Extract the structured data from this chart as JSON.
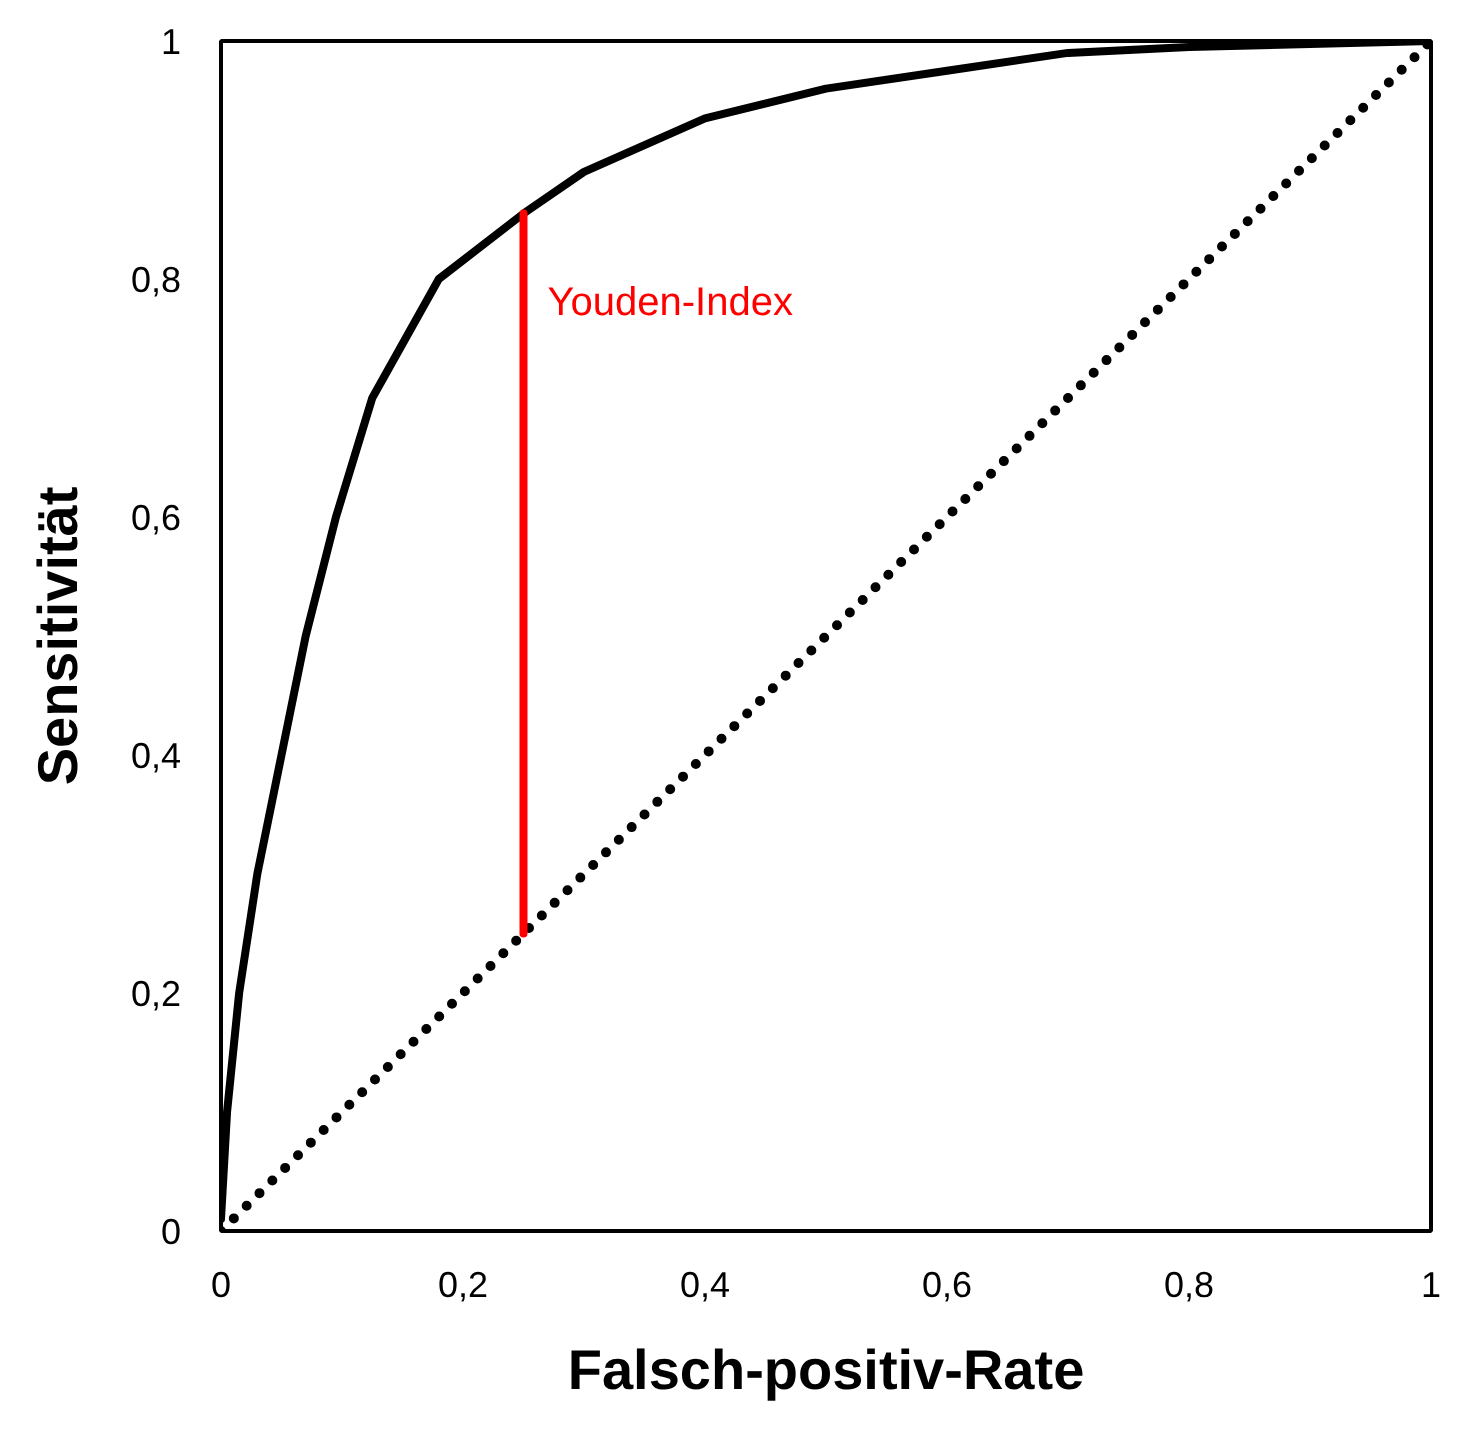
{
  "chart_data": {
    "type": "line",
    "xlabel": "Falsch-positiv-Rate",
    "ylabel": "Sensitivität",
    "xlim": [
      0,
      1
    ],
    "ylim": [
      0,
      1
    ],
    "xticks": [
      0,
      {
        "value": 0.2,
        "label": "0,2"
      },
      {
        "value": 0.4,
        "label": "0,4"
      },
      {
        "value": 0.6,
        "label": "0,6"
      },
      {
        "value": 0.8,
        "label": "0,8"
      },
      1
    ],
    "yticks": [
      0,
      {
        "value": 0.2,
        "label": "0,2"
      },
      {
        "value": 0.4,
        "label": "0,4"
      },
      {
        "value": 0.6,
        "label": "0,6"
      },
      {
        "value": 0.8,
        "label": "0,8"
      },
      1
    ],
    "grid": false,
    "marker": "none",
    "series": [
      {
        "color": "#000000",
        "line_style": "solid",
        "x": [
          0,
          0.005,
          0.015,
          0.03,
          0.05,
          0.07,
          0.095,
          0.125,
          0.18,
          0.25,
          0.3,
          0.4,
          0.5,
          0.6,
          0.7,
          0.8,
          1
        ],
        "values": [
          0.01,
          0.1,
          0.2,
          0.3,
          0.4,
          0.5,
          0.6,
          0.7,
          0.8,
          0.855,
          0.89,
          0.935,
          0.96,
          0.975,
          0.99,
          0.995,
          1
        ]
      },
      {
        "color": "#000000",
        "line_style": "dotted",
        "x": [
          0,
          1
        ],
        "values": [
          0,
          1
        ]
      },
      {
        "color": "#ff0000",
        "line_style": "solid",
        "x": [
          0.25,
          0.25
        ],
        "values": [
          0.25,
          0.855
        ]
      }
    ],
    "annotations": [
      {
        "text": "Youden-Index",
        "x": 0.25,
        "y": 0.78
      }
    ]
  }
}
